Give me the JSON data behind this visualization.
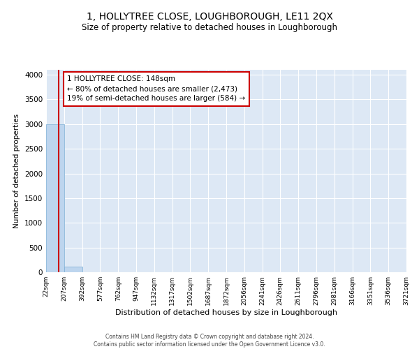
{
  "title": "1, HOLLYTREE CLOSE, LOUGHBOROUGH, LE11 2QX",
  "subtitle": "Size of property relative to detached houses in Loughborough",
  "xlabel": "Distribution of detached houses by size in Loughborough",
  "ylabel": "Number of detached properties",
  "footer_line1": "Contains HM Land Registry data © Crown copyright and database right 2024.",
  "footer_line2": "Contains public sector information licensed under the Open Government Licence v3.0.",
  "bar_edges": [
    22,
    207,
    392,
    577,
    762,
    947,
    1132,
    1317,
    1502,
    1687,
    1872,
    2056,
    2241,
    2426,
    2611,
    2796,
    2981,
    3166,
    3351,
    3536,
    3721
  ],
  "bar_heights": [
    2995,
    120,
    5,
    2,
    1,
    0,
    0,
    0,
    0,
    0,
    0,
    0,
    0,
    0,
    0,
    0,
    0,
    0,
    0,
    0
  ],
  "bar_color": "#bdd5ee",
  "bar_edgecolor": "#7aadd4",
  "property_size": 148,
  "red_line_color": "#cc0000",
  "annotation_text": "1 HOLLYTREE CLOSE: 148sqm\n← 80% of detached houses are smaller (2,473)\n19% of semi-detached houses are larger (584) →",
  "annotation_box_color": "#ffffff",
  "annotation_box_edgecolor": "#cc0000",
  "ylim": [
    0,
    4100
  ],
  "background_color": "#dde8f5",
  "grid_color": "#ffffff",
  "title_fontsize": 10,
  "subtitle_fontsize": 8.5,
  "tick_label_fontsize": 6.5,
  "ylabel_fontsize": 7.5,
  "xlabel_fontsize": 8
}
